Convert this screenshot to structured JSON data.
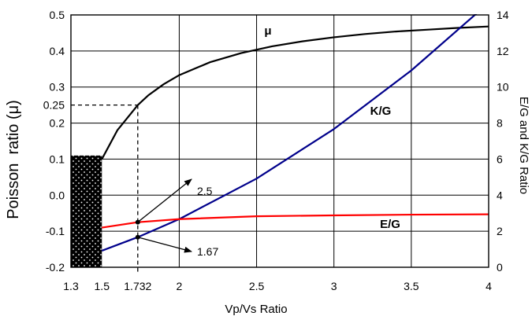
{
  "chart_data": {
    "type": "line",
    "xlabel": "Vp/Vs Ratio",
    "ylabel_left": "Poisson  ratio (μ)",
    "ylabel_right": "E/G and K/G Ratio",
    "xlim": [
      1.3,
      4
    ],
    "ylim_left": [
      -0.2,
      0.5
    ],
    "ylim_right": [
      0,
      14
    ],
    "grid": true,
    "x_ticks": [
      "1.3",
      "1.5",
      "1.732",
      "2",
      "2.5",
      "3",
      "3.5",
      "4"
    ],
    "x_tick_values": [
      1.3,
      1.5,
      1.732,
      2,
      2.5,
      3,
      3.5,
      4
    ],
    "y_left_ticks": [
      "-0.2",
      "-0.1",
      "0.0",
      "0.1",
      "0.2",
      "0.25",
      "0.3",
      "0.4",
      "0.5"
    ],
    "y_left_tick_values": [
      -0.2,
      -0.1,
      0.0,
      0.1,
      0.2,
      0.25,
      0.3,
      0.4,
      0.5
    ],
    "y_right_ticks": [
      "0",
      "2",
      "4",
      "6",
      "8",
      "10",
      "12",
      "14"
    ],
    "y_right_tick_values": [
      0,
      2,
      4,
      6,
      8,
      10,
      12,
      14
    ],
    "series": [
      {
        "name": "μ",
        "axis": "left",
        "color": "#000000",
        "x": [
          1.5,
          1.6,
          1.732,
          1.8,
          1.9,
          2.0,
          2.2,
          2.4,
          2.6,
          2.8,
          3.0,
          3.2,
          3.4,
          3.6,
          3.8,
          4.0
        ],
        "y": [
          0.1,
          0.18,
          0.25,
          0.277,
          0.308,
          0.333,
          0.369,
          0.394,
          0.413,
          0.427,
          0.438,
          0.447,
          0.454,
          0.459,
          0.464,
          0.468
        ]
      },
      {
        "name": "K/G",
        "axis": "right",
        "color": "#00008B",
        "x": [
          1.5,
          1.732,
          2.0,
          2.5,
          3.0,
          3.5,
          4.0
        ],
        "y": [
          0.92,
          1.67,
          2.67,
          4.92,
          7.67,
          10.92,
          14.67
        ]
      },
      {
        "name": "E/G",
        "axis": "right",
        "color": "#FF0000",
        "x": [
          1.5,
          1.732,
          2.0,
          2.5,
          3.0,
          3.5,
          4.0
        ],
        "y": [
          2.2,
          2.5,
          2.67,
          2.83,
          2.88,
          2.92,
          2.94
        ]
      }
    ],
    "series_labels": [
      "μ",
      "K/G",
      "E/G"
    ],
    "annotations": [
      {
        "text": "2.5",
        "x": 1.732,
        "y_right": 2.5
      },
      {
        "text": "1.67",
        "x": 1.732,
        "y_right": 1.67
      }
    ],
    "shaded_region": {
      "x": [
        1.3,
        1.5
      ],
      "y_left": [
        -0.2,
        0.11
      ],
      "pattern": "black-dotted"
    },
    "reference_line": {
      "x": 1.732,
      "y_left": 0.25
    }
  }
}
